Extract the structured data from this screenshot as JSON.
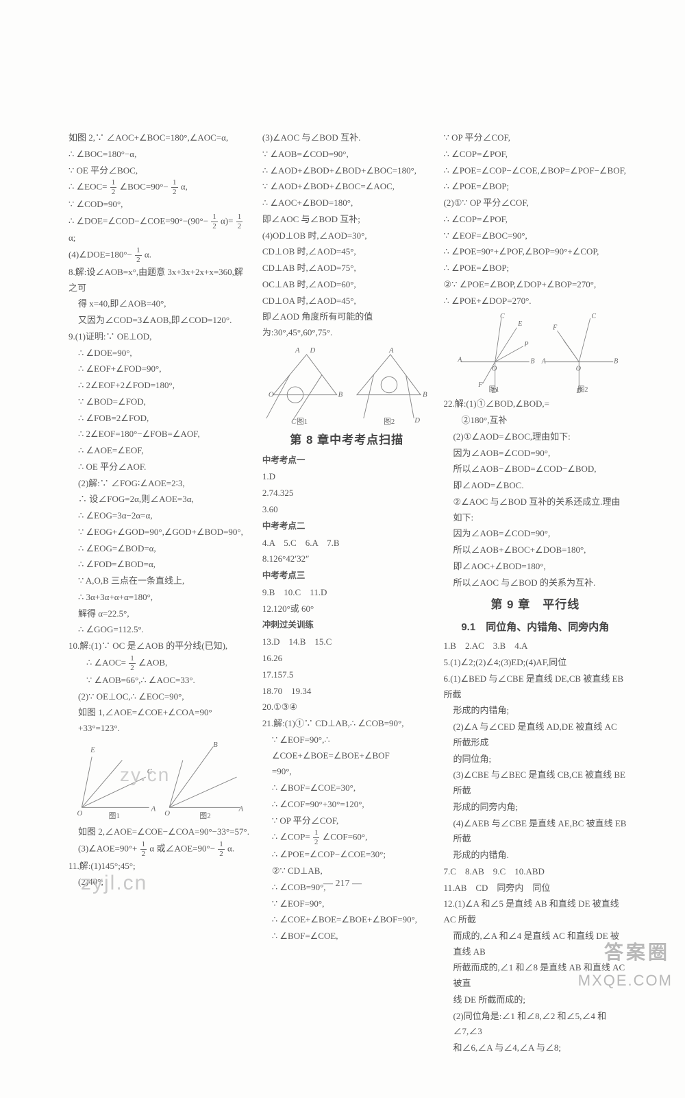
{
  "page_number": "— 217 —",
  "watermarks": {
    "wm1": "zy.cn",
    "wm2": "zyjl.cn",
    "br1": "答案圈",
    "br2": "MXQE.COM"
  },
  "col1": {
    "lines": [
      "如图 2,∵ ∠AOC+∠BOC=180°,∠AOC=α,",
      "∴ ∠BOC=180°−α,",
      "∵ OE 平分∠BOC,",
      "frac:∴ ∠EOC= {1|2} ∠BOC=90°− {1|2} α,",
      "∵ ∠COD=90°,",
      "frac:∴ ∠DOE=∠COD−∠COE=90°−(90°− {1|2} α)= {1|2} α;",
      "frac:(4)∠DOE=180°− {1|2} α.",
      "8.解:设∠AOB=x°,由题意 3x+3x+2x+x=360,解之可",
      "indent1:得 x=40,即∠AOB=40°,",
      "indent1:又因为∠COD=3∠AOB,即∠COD=120°.",
      "9.(1)证明:∵ OE⊥OD,",
      "indent1:∴ ∠DOE=90°,",
      "indent1:∴ ∠EOF+∠FOD=90°,",
      "indent1:∴ 2∠EOF+2∠FOD=180°,",
      "indent1:∵ ∠BOD=∠FOD,",
      "indent1:∴ ∠FOB=2∠FOD,",
      "indent1:∴ 2∠EOF=180°−∠FOB=∠AOF,",
      "indent1:∴ ∠AOE=∠EOF,",
      "indent1:∴ OE 平分∠AOF.",
      "indent1:(2)解:∵ ∠FOG∶∠AOE=2∶3,",
      "indent1:∴ 设∠FOG=2α,则∠AOE=3α,",
      "indent1:∴ ∠EOG=3α−2α=α,",
      "indent1:∵ ∠EOG+∠GOD=90°,∠GOD+∠BOD=90°,",
      "indent1:∴ ∠EOG=∠BOD=α,",
      "indent1:∴ ∠FOD=∠BOD=α,",
      "indent1:∵ A,O,B 三点在一条直线上,",
      "indent1:∴ 3α+3α+α+α=180°,",
      "indent1:解得 α=22.5°,",
      "indent1:∴ ∠GOG=112.5°.",
      "10.解:(1)∵ OC 是∠AOB 的平分线(已知),",
      "frac:indent2:∴ ∠AOC= {1|2} ∠AOB,",
      "indent2:∵ ∠AOB=66°,∴ ∠AOC=33°.",
      "indent1:(2)∵ OE⊥OC,∴ ∠EOC=90°,",
      "indent1:如图 1,∠AOE=∠COE+∠COA=90°+33°=123°."
    ],
    "diagram_labels": {
      "d1": "E",
      "d2": "C",
      "d3": "A",
      "d4": "O",
      "d5": "B",
      "cap1": "图1",
      "cap2": "图2"
    },
    "after_diagram": [
      "indent1:如图 2,∠AOE=∠COE−∠COA=90°−33°=57°.",
      "frac:indent1:(3)∠AOE=90°+ {1|2} α 或∠AOE=90°− {1|2} α.",
      "11.解:(1)145°;45°;",
      "indent1:(2)40°;"
    ]
  },
  "col2": {
    "lines": [
      "(3)∠AOC 与∠BOD 互补.",
      "∵ ∠AOB=∠COD=90°,",
      "∴ ∠AOD+∠BOD+∠BOD+∠BOC=180°,",
      "∵ ∠AOD+∠BOD+∠BOC=∠AOC,",
      "∴ ∠AOC+∠BOD=180°,",
      "即∠AOC 与∠BOD 互补;",
      "(4)OD⊥OB 时,∠AOD=30°,",
      "CD⊥OB 时,∠AOD=45°,",
      "CD⊥AB 时,∠AOD=75°,",
      "OC⊥AB 时,∠AOD=60°,",
      "CD⊥OA 时,∠AOD=45°,",
      "即∠AOD 角度所有可能的值为:30°,45°,60°,75°."
    ],
    "diagram_labels": {
      "d1": "A",
      "d2": "D",
      "d3": "B",
      "d4": "C",
      "d5": "O",
      "cap1": "图1",
      "cap2": "图2"
    },
    "chapter": "第 8 章中考考点扫描",
    "sub1": "中考考点一",
    "block1": [
      "1.D",
      "2.74.325",
      "3.60"
    ],
    "sub2": "中考考点二",
    "block2": [
      "4.A　5.C　6.A　7.B",
      "8.126°42′32″"
    ],
    "sub3": "中考考点三",
    "block3": [
      "9.B　10.C　11.D",
      "12.120°或 60°"
    ],
    "sub4": "冲刺过关训练",
    "block4": [
      "13.D　14.B　15.C",
      "16.26",
      "17.157.5",
      "18.70　19.34",
      "20.①③④",
      "21.解:(1)①∵ CD⊥AB,∴ ∠COB=90°,",
      "indent1:∵ ∠EOF=90°,∴ ∠COE+∠BOE=∠BOE+∠BOF",
      "indent1:=90°,",
      "indent1:∴ ∠BOF=∠COE=30°,",
      "indent1:∴ ∠COF=90°+30°=120°,",
      "indent1:∵ OP 平分∠COF,",
      "frac:indent1:∴ ∠COP= {1|2} ∠COF=60°,",
      "indent1:∴ ∠POE=∠COP−∠COE=30°;",
      "indent1:②∵ CD⊥AB,",
      "indent1:∴ ∠COB=90°,",
      "indent1:∵ ∠EOF=90°,",
      "indent1:∴ ∠COE+∠BOE=∠BOE+∠BOF=90°,",
      "indent1:∴ ∠BOF=∠COE,"
    ]
  },
  "col3": {
    "lines": [
      "∵ OP 平分∠COF,",
      "∴ ∠COP=∠POF,",
      "∴ ∠POE=∠COP−∠COE,∠BOP=∠POF−∠BOF,",
      "∴ ∠POE=∠BOP;",
      "(2)①∵ OP 平分∠COF,",
      "∴ ∠COP=∠POF,",
      "∵ ∠EOF=∠BOC=90°,",
      "∴ ∠POE=90°+∠POF,∠BOP=90°+∠COP,",
      "∴ ∠POE=∠BOP;",
      "②∵ ∠POE=∠BOP,∠DOP+∠BOP=270°,",
      "∴ ∠POE+∠DOP=270°."
    ],
    "diagram_labels": {
      "d1": "C",
      "d2": "E",
      "d3": "P",
      "d4": "A",
      "d5": "O",
      "d6": "B",
      "d7": "F",
      "d8": "D",
      "cap1": "图1",
      "cap2": "图2"
    },
    "after_diagram": [
      "22.解:(1)①∠BOD,∠BOD,=",
      "indent2:②180°,互补",
      "indent1:(2)①∠AOD=∠BOC,理由如下:",
      "indent1:因为∠AOB=∠COD=90°,",
      "indent1:所以∠AOB−∠BOD=∠COD−∠BOD,",
      "indent1:即∠AOD=∠BOC.",
      "indent1:②∠AOC 与∠BOD 互补的关系还成立.理由如下:",
      "indent1:因为∠AOB=∠COD=90°,",
      "indent1:所以∠AOB+∠BOC+∠DOB=180°,",
      "indent1:即∠AOC+∠BOD=180°,",
      "indent1:所以∠AOC 与∠BOD 的关系为互补."
    ],
    "chapter": "第 9 章　平行线",
    "section": "9.1　同位角、内错角、同旁内角",
    "block1": [
      "1.B　2.AC　3.B　4.A",
      "5.(1)∠2;(2)∠4;(3)ED;(4)AF,同位",
      "6.(1)∠BED 与∠CBE 是直线 DE,CB 被直线 EB 所截",
      "indent1:形成的内错角;",
      "indent1:(2)∠A 与∠CED 是直线 AD,DE 被直线 AC 所截形成",
      "indent1:的同位角;",
      "indent1:(3)∠CBE 与∠BEC 是直线 CB,CE 被直线 BE 所截",
      "indent1:形成的同旁内角;",
      "indent1:(4)∠AEB 与∠CBE 是直线 AE,BC 被直线 EB 所截",
      "indent1:形成的内错角.",
      "7.C　8.AB　9.C　10.ABD",
      "11.AB　CD　同旁内　同位",
      "12.(1)∠A 和∠5 是直线 AB 和直线 DE 被直线 AC 所截",
      "indent1:而成的,∠A 和∠4 是直线 AC 和直线 DE 被直线 AB",
      "indent1:所截而成的,∠1 和∠8 是直线 AB 和直线 AC 被直",
      "indent1:线 DE 所截而成的;",
      "indent1:(2)同位角是:∠1 和∠8,∠2 和∠5,∠4 和∠7,∠3",
      "indent1:和∠6,∠A 与∠4,∠A 与∠8;"
    ]
  }
}
